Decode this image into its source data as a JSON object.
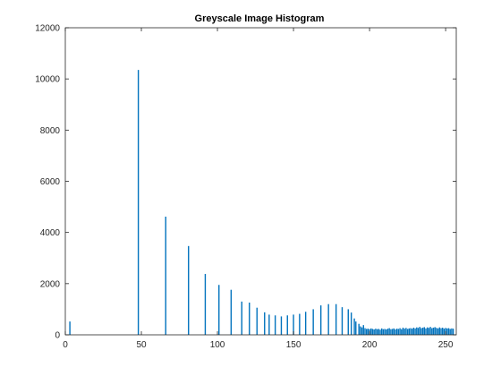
{
  "window": {
    "background": "#ffffff"
  },
  "chart_data": {
    "type": "bar",
    "title": "Greyscale Image Histogram",
    "xlabel": "",
    "ylabel": "",
    "xlim": [
      0,
      257
    ],
    "ylim": [
      0,
      12000
    ],
    "x_ticks": [
      0,
      50,
      100,
      150,
      200,
      250
    ],
    "x_tick_labels": [
      "0",
      "50",
      "100",
      "150",
      "200",
      "250"
    ],
    "y_ticks": [
      0,
      2000,
      4000,
      6000,
      8000,
      10000,
      12000
    ],
    "y_tick_labels": [
      "0",
      "2000",
      "4000",
      "6000",
      "8000",
      "10000",
      "12000"
    ],
    "grid": false,
    "box": true,
    "bar_color": "#0072bd",
    "axis_color": "#262626",
    "series": [
      {
        "x": [
          3,
          48,
          66,
          81,
          92,
          101,
          109,
          116,
          121,
          126,
          131,
          134,
          138,
          142,
          146,
          150,
          154,
          158,
          163,
          168,
          173,
          178,
          182,
          186,
          188,
          190,
          191,
          193,
          194,
          195,
          196,
          197,
          198,
          199,
          200,
          201,
          202,
          203,
          204,
          205,
          206,
          207,
          208,
          209,
          210,
          211,
          212,
          213,
          214,
          215,
          216,
          217,
          218,
          219,
          220,
          221,
          222,
          223,
          224,
          225,
          226,
          227,
          228,
          229,
          230,
          231,
          232,
          233,
          234,
          235,
          236,
          237,
          238,
          239,
          240,
          241,
          242,
          243,
          244,
          245,
          246,
          247,
          248,
          249,
          250,
          251,
          252,
          253,
          254,
          255
        ],
        "values": [
          520,
          10350,
          4620,
          3470,
          2380,
          1950,
          1760,
          1300,
          1260,
          1060,
          880,
          790,
          760,
          720,
          760,
          790,
          820,
          900,
          1000,
          1150,
          1200,
          1200,
          1080,
          1000,
          870,
          640,
          520,
          430,
          330,
          290,
          380,
          260,
          230,
          240,
          220,
          250,
          230,
          210,
          240,
          220,
          230,
          200,
          250,
          220,
          230,
          210,
          240,
          260,
          220,
          230,
          250,
          210,
          240,
          230,
          260,
          220,
          280,
          240,
          270,
          230,
          250,
          260,
          240,
          280,
          250,
          290,
          270,
          310,
          260,
          280,
          300,
          250,
          290,
          270,
          310,
          260,
          280,
          300,
          270,
          250,
          290,
          260,
          280,
          240,
          270,
          250,
          260,
          230,
          250,
          240
        ]
      }
    ]
  }
}
